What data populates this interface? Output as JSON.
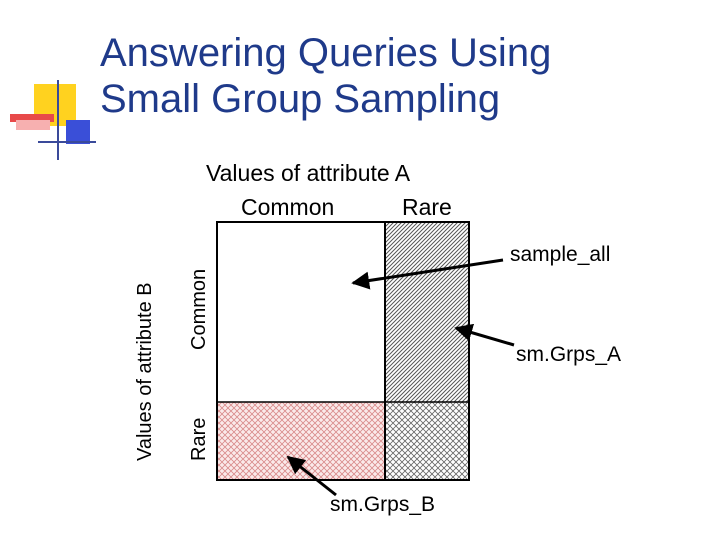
{
  "title_line1": "Answering Queries Using",
  "title_line2": "Small Group Sampling",
  "axis_top": "Values of attribute A",
  "col_common": "Common",
  "col_rare": "Rare",
  "axis_left": "Values of attribute B",
  "row_common": "Common",
  "row_rare": "Rare",
  "label_sample_all": "sample_all",
  "label_smgrps_a": "sm.Grps_A",
  "label_smgrps_b": "sm.Grps_B",
  "colors": {
    "title": "#1f3a8a",
    "deco_yellow": "#ffd21f",
    "deco_red": "#e84a4a",
    "deco_blue": "#3a4fd8",
    "hatch_pink": "#d98a8a"
  }
}
